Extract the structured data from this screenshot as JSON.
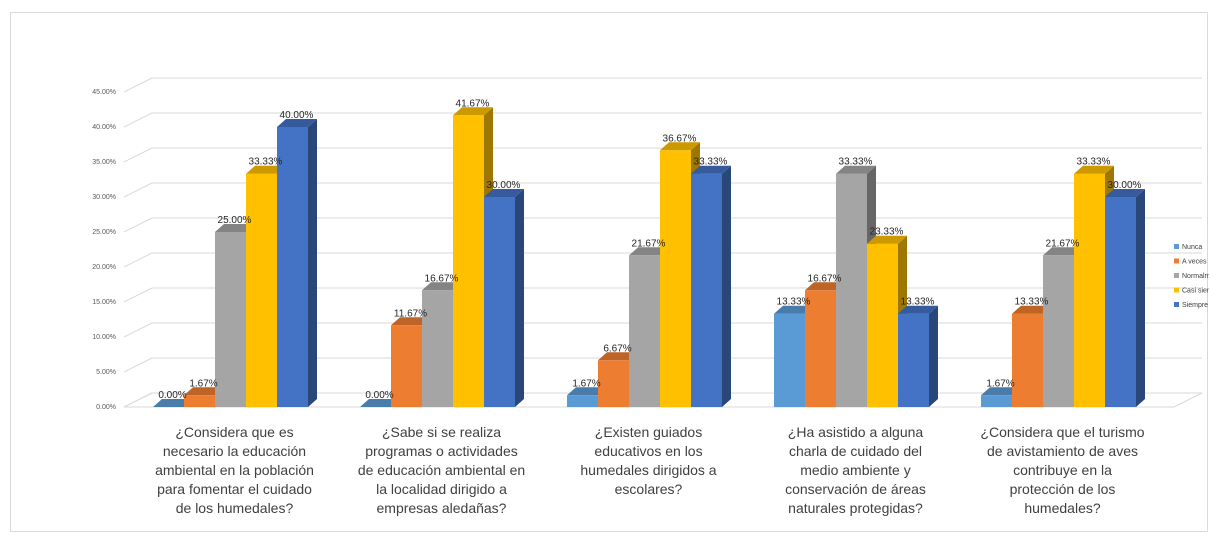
{
  "chart_data": {
    "type": "bar",
    "style": "3d-clustered-column",
    "categories": [
      [
        "¿Considera que es",
        "necesario la educación",
        "ambiental en la población",
        "para fomentar el cuidado",
        "de los humedales?"
      ],
      [
        "¿Sabe si se realiza",
        "programas o actividades",
        "de educación ambiental en",
        "la localidad dirigido a",
        "empresas aledañas?"
      ],
      [
        "¿Existen guiados",
        "educativos en los",
        "humedales dirigidos a",
        "escolares?"
      ],
      [
        "¿Ha asistido a alguna",
        "charla de cuidado del",
        "medio ambiente y",
        "conservación de áreas",
        "naturales protegidas?"
      ],
      [
        "¿Considera que el turismo",
        "de avistamiento de aves",
        "contribuye en la",
        "protección de los",
        "humedales?"
      ]
    ],
    "series": [
      {
        "name": "Nunca",
        "color": "#5B9BD5",
        "values": [
          0.0,
          0.0,
          1.67,
          13.33,
          1.67
        ],
        "labels": [
          "0.00%",
          "0.00%",
          "1.67%",
          "13.33%",
          "1.67%"
        ]
      },
      {
        "name": "A veces",
        "color": "#ED7D31",
        "values": [
          1.67,
          11.67,
          6.67,
          16.67,
          13.33
        ],
        "labels": [
          "1.67%",
          "11.67%",
          "6.67%",
          "16.67%",
          "13.33%"
        ]
      },
      {
        "name": "Normalmer",
        "color": "#A5A5A5",
        "values": [
          25.0,
          16.67,
          21.67,
          33.33,
          21.67
        ],
        "labels": [
          "25.00%",
          "16.67%",
          "21.67%",
          "33.33%",
          "21.67%"
        ]
      },
      {
        "name": "Casi siempr",
        "color": "#FFC000",
        "values": [
          33.33,
          41.67,
          36.67,
          23.33,
          33.33
        ],
        "labels": [
          "33.33%",
          "41.67%",
          "36.67%",
          "23.33%",
          "33.33%"
        ]
      },
      {
        "name": "Siempre",
        "color": "#4472C4",
        "values": [
          40.0,
          30.0,
          33.33,
          13.33,
          30.0
        ],
        "labels": [
          "40.00%",
          "30.00%",
          "33.33%",
          "13.33%",
          "30.00%"
        ]
      }
    ],
    "yticks": [
      "0.00%",
      "5.00%",
      "10.00%",
      "15.00%",
      "20.00%",
      "25.00%",
      "30.00%",
      "35.00%",
      "40.00%",
      "45.00%"
    ],
    "ylim": [
      0,
      45
    ],
    "grid": true,
    "legend": "right"
  }
}
